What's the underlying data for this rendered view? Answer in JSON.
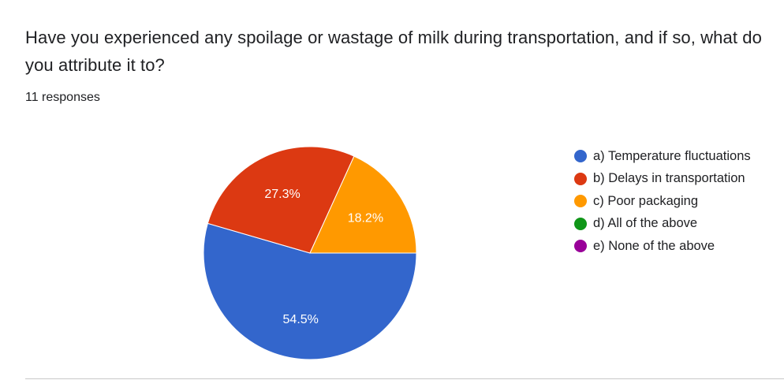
{
  "question": {
    "title": "Have you experienced any spoilage or wastage of milk during transportation, and if so, what do you attribute it to?",
    "responses": "11 responses"
  },
  "chart_data": {
    "type": "pie",
    "slices": [
      {
        "label": "a) Temperature fluctuations",
        "value": 54.5,
        "display": "54.5%",
        "color": "#3366cc"
      },
      {
        "label": "b) Delays in transportation",
        "value": 27.3,
        "display": "27.3%",
        "color": "#dc3912"
      },
      {
        "label": "c) Poor packaging",
        "value": 18.2,
        "display": "18.2%",
        "color": "#ff9900"
      },
      {
        "label": "d) All of the above",
        "value": 0,
        "display": "",
        "color": "#109618"
      },
      {
        "label": "e) None of the above",
        "value": 0,
        "display": "",
        "color": "#990099"
      }
    ],
    "legend_position": "right"
  }
}
